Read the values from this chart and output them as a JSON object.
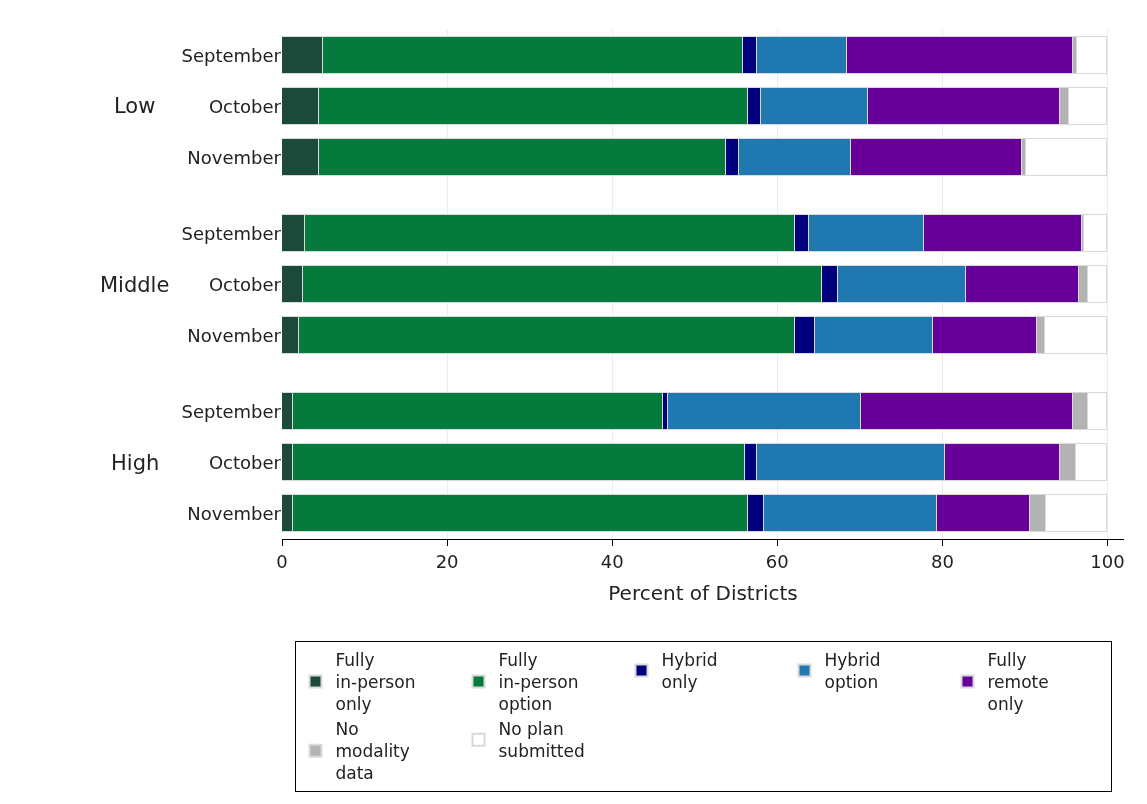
{
  "chart_data": {
    "type": "bar",
    "orientation": "horizontal",
    "stacked": true,
    "categories": [
      "September",
      "October",
      "November",
      "September",
      "October",
      "November",
      "September",
      "October",
      "November"
    ],
    "annotations": [
      "Low",
      "Middle",
      "High"
    ],
    "xlabel": "Percent of Districts",
    "xlim": [
      0,
      102
    ],
    "xticks": [
      0,
      20,
      40,
      60,
      80,
      100
    ],
    "grid": "x",
    "legend": "bottom",
    "series": [
      {
        "name": "Fully\nin-person\nonly",
        "color": "#1b4a3b",
        "values": [
          5.0,
          4.5,
          4.5,
          2.8,
          2.5,
          2.1,
          1.3,
          1.3,
          1.3
        ]
      },
      {
        "name": "Fully\nin-person\noption",
        "color": "#047a3c",
        "values": [
          50.9,
          52.0,
          49.3,
          59.4,
          62.9,
          60.1,
          44.9,
          54.8,
          55.2
        ]
      },
      {
        "name": "Hybrid\nonly",
        "color": "#00007f",
        "values": [
          1.6,
          1.5,
          1.6,
          1.7,
          1.9,
          2.4,
          0.6,
          1.4,
          1.9
        ]
      },
      {
        "name": "Hybrid\noption",
        "color": "#1f78b0",
        "values": [
          10.9,
          13.0,
          13.5,
          13.9,
          15.5,
          14.3,
          23.3,
          22.8,
          21.0
        ]
      },
      {
        "name": "Fully\nremote\nonly",
        "color": "#660099",
        "values": [
          27.4,
          23.2,
          20.7,
          19.1,
          13.8,
          12.6,
          25.7,
          14.0,
          11.2
        ]
      },
      {
        "name": "No\nmodality\ndata",
        "color": "#b3b3b3",
        "values": [
          0.5,
          1.1,
          0.5,
          0.3,
          1.0,
          0.9,
          1.8,
          1.9,
          1.9
        ]
      },
      {
        "name": "No plan\nsubmitted",
        "color": "#ffffff",
        "values": [
          3.7,
          4.7,
          9.9,
          2.8,
          2.4,
          7.6,
          2.4,
          3.8,
          7.5
        ]
      }
    ]
  }
}
